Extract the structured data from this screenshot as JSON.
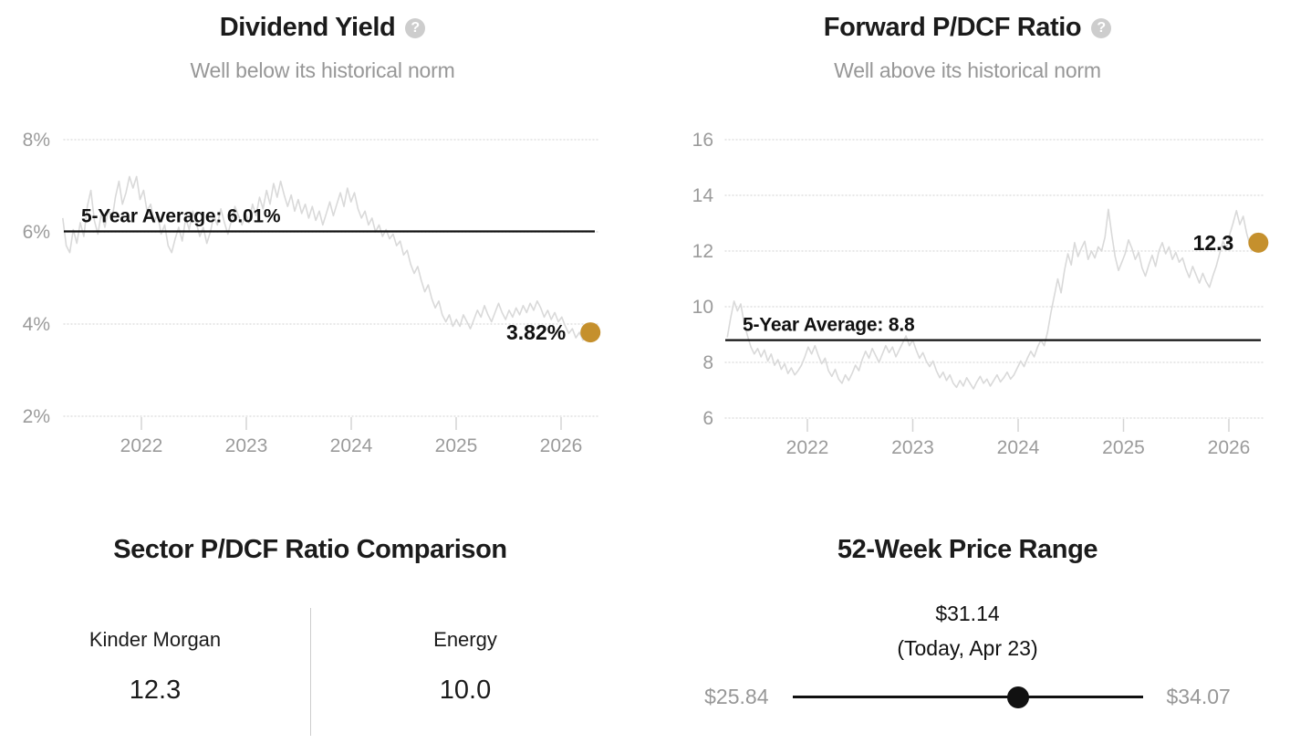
{
  "ui": {
    "help_icon_glyph": "?"
  },
  "colors": {
    "accent_gold": "#c5902d",
    "text_dark": "#1b1b1b",
    "text_gray": "#979797",
    "series_line": "#d9d9d9",
    "average_line": "#111111",
    "help_icon_bg": "#cdcdcd"
  },
  "chart_data": [
    {
      "type": "line",
      "title": "Dividend Yield",
      "subtitle": "Well below its historical norm",
      "ylim": [
        2,
        8.3
      ],
      "yticks": [
        8,
        6,
        4,
        2
      ],
      "ytick_labels": [
        "8%",
        "6%",
        "4%",
        "2%"
      ],
      "xticks": [
        2022,
        2023,
        2024,
        2025,
        2026
      ],
      "xtick_labels": [
        "2022",
        "2023",
        "2024",
        "2025",
        "2026"
      ],
      "grid": "dotted",
      "average": {
        "label": "5-Year Average: 6.01%",
        "value": 6.01
      },
      "marker": {
        "label": "3.82%",
        "value": 3.82,
        "x": 2026.28
      },
      "series": {
        "name": "dividend-yield",
        "x_start": 2021.25,
        "x_step": 0.0335,
        "values": [
          6.3,
          5.7,
          5.55,
          6.05,
          5.75,
          6.2,
          5.9,
          6.55,
          6.9,
          6.25,
          5.95,
          6.4,
          6.1,
          6.5,
          6.25,
          6.75,
          7.1,
          6.6,
          6.85,
          7.2,
          6.95,
          7.2,
          6.7,
          6.9,
          6.45,
          6.6,
          6.2,
          6.4,
          5.95,
          6.15,
          5.7,
          5.55,
          5.85,
          6.1,
          5.8,
          6.3,
          6.05,
          6.45,
          6.2,
          5.9,
          6.1,
          5.75,
          6.0,
          6.35,
          6.15,
          6.5,
          6.2,
          5.95,
          6.25,
          6.55,
          6.35,
          6.15,
          6.4,
          6.2,
          6.6,
          6.35,
          6.75,
          6.5,
          6.9,
          6.6,
          7.05,
          6.75,
          7.1,
          6.8,
          6.55,
          6.8,
          6.45,
          6.7,
          6.4,
          6.6,
          6.3,
          6.55,
          6.25,
          6.45,
          6.15,
          6.4,
          6.65,
          6.35,
          6.6,
          6.85,
          6.55,
          6.95,
          6.65,
          6.85,
          6.5,
          6.3,
          6.45,
          6.15,
          6.3,
          6.0,
          6.15,
          5.9,
          6.05,
          5.85,
          5.95,
          5.7,
          5.8,
          5.5,
          5.6,
          5.3,
          5.1,
          5.25,
          4.95,
          4.7,
          4.85,
          4.55,
          4.35,
          4.5,
          4.2,
          4.05,
          4.2,
          3.95,
          4.1,
          3.95,
          4.2,
          4.05,
          3.9,
          4.1,
          4.3,
          4.15,
          4.4,
          4.2,
          4.05,
          4.25,
          4.45,
          4.25,
          4.1,
          4.3,
          4.15,
          4.35,
          4.2,
          4.4,
          4.25,
          4.45,
          4.3,
          4.5,
          4.35,
          4.15,
          4.3,
          4.1,
          4.25,
          4.05,
          4.15,
          3.95,
          3.8,
          3.9,
          3.7,
          3.82,
          3.65,
          3.75,
          3.82
        ]
      }
    },
    {
      "type": "line",
      "title": "Forward P/DCF Ratio",
      "subtitle": "Well above its historical norm",
      "ylim": [
        6,
        16.3
      ],
      "yticks": [
        16,
        14,
        12,
        10,
        8,
        6
      ],
      "ytick_labels": [
        "16",
        "14",
        "12",
        "10",
        "8",
        "6"
      ],
      "xticks": [
        2022,
        2023,
        2024,
        2025,
        2026
      ],
      "xtick_labels": [
        "2022",
        "2023",
        "2024",
        "2025",
        "2026"
      ],
      "grid": "dotted",
      "average": {
        "label": "5-Year Average: 8.8",
        "value": 8.8
      },
      "marker": {
        "label": "12.3",
        "value": 12.3,
        "x": 2026.28
      },
      "series": {
        "name": "forward-pdcf",
        "x_start": 2021.24,
        "x_step": 0.032,
        "values": [
          8.9,
          9.6,
          10.2,
          9.85,
          10.1,
          9.4,
          8.95,
          8.55,
          8.3,
          8.5,
          8.2,
          8.45,
          8.05,
          8.3,
          7.9,
          8.1,
          7.75,
          7.95,
          7.6,
          7.8,
          7.55,
          7.7,
          7.9,
          8.2,
          8.55,
          8.3,
          8.6,
          8.25,
          7.95,
          8.15,
          7.7,
          7.5,
          7.75,
          7.4,
          7.25,
          7.55,
          7.35,
          7.6,
          7.9,
          7.7,
          8.1,
          8.4,
          8.15,
          8.5,
          8.25,
          8.0,
          8.3,
          8.6,
          8.35,
          8.55,
          8.2,
          8.45,
          8.7,
          8.95,
          8.6,
          8.8,
          8.45,
          8.15,
          8.35,
          8.05,
          7.85,
          8.05,
          7.7,
          7.45,
          7.65,
          7.35,
          7.55,
          7.25,
          7.1,
          7.35,
          7.15,
          7.45,
          7.25,
          7.05,
          7.3,
          7.5,
          7.25,
          7.4,
          7.15,
          7.35,
          7.55,
          7.3,
          7.45,
          7.65,
          7.4,
          7.55,
          7.8,
          8.05,
          7.85,
          8.15,
          8.4,
          8.2,
          8.55,
          8.8,
          8.6,
          9.1,
          9.8,
          10.4,
          11.0,
          10.5,
          11.3,
          11.9,
          11.5,
          12.3,
          11.8,
          12.1,
          12.35,
          11.7,
          12.0,
          11.75,
          12.15,
          12.0,
          12.5,
          13.5,
          12.6,
          11.8,
          11.3,
          11.6,
          11.9,
          12.4,
          12.1,
          11.7,
          11.95,
          11.4,
          11.1,
          11.5,
          11.85,
          11.45,
          12.0,
          12.3,
          11.9,
          12.15,
          11.7,
          11.95,
          11.6,
          11.75,
          11.35,
          11.05,
          11.45,
          11.15,
          10.85,
          11.2,
          10.9,
          10.7,
          11.1,
          11.45,
          11.9,
          12.35,
          12.1,
          12.6,
          13.0,
          13.45,
          12.95,
          13.25,
          12.65,
          12.2,
          12.45,
          12.3
        ]
      }
    }
  ],
  "sector_comparison": {
    "title": "Sector P/DCF Ratio Comparison",
    "columns": [
      {
        "label": "Kinder Morgan",
        "value": "12.3"
      },
      {
        "label": "Energy",
        "value": "10.0"
      }
    ]
  },
  "price_range": {
    "title": "52-Week Price Range",
    "current_price": "$31.14",
    "current_date": "(Today, Apr 23)",
    "low": "$25.84",
    "high": "$34.07",
    "low_value": 25.84,
    "high_value": 34.07,
    "current_value": 31.14
  }
}
